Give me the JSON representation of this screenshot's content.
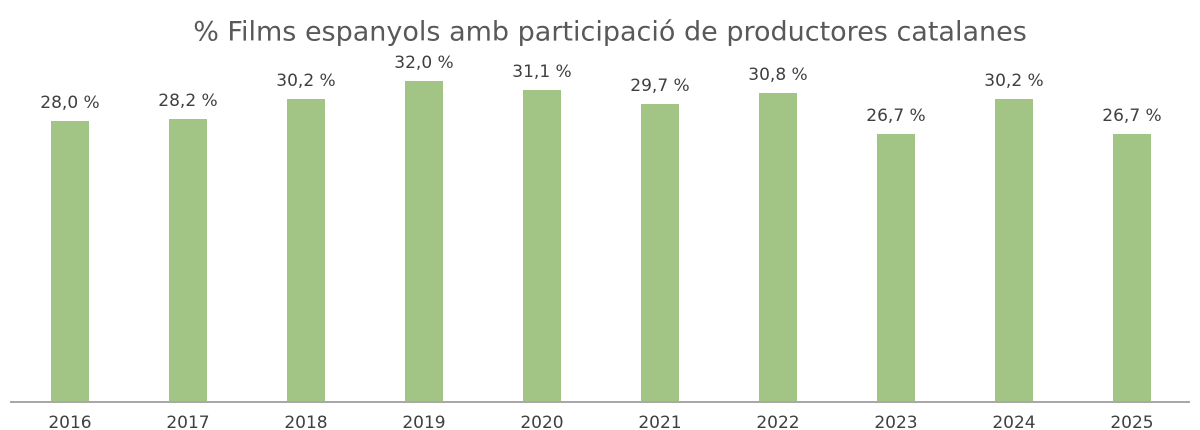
{
  "chart_data": {
    "type": "bar",
    "title": "% Films espanyols amb participació de productores catalanes",
    "categories": [
      "2016",
      "2017",
      "2018",
      "2019",
      "2020",
      "2021",
      "2022",
      "2023",
      "2024",
      "2025"
    ],
    "values": [
      28.0,
      28.2,
      30.2,
      32.0,
      31.1,
      29.7,
      30.8,
      26.7,
      30.2,
      26.7
    ],
    "value_labels": [
      "28,0 %",
      "28,2 %",
      "30,2 %",
      "32,0 %",
      "31,1 %",
      "29,7 %",
      "30,8 %",
      "26,7 %",
      "30,2 %",
      "26,7 %"
    ],
    "color": "#a2c586",
    "ylim": [
      0,
      40
    ],
    "grid": false
  }
}
